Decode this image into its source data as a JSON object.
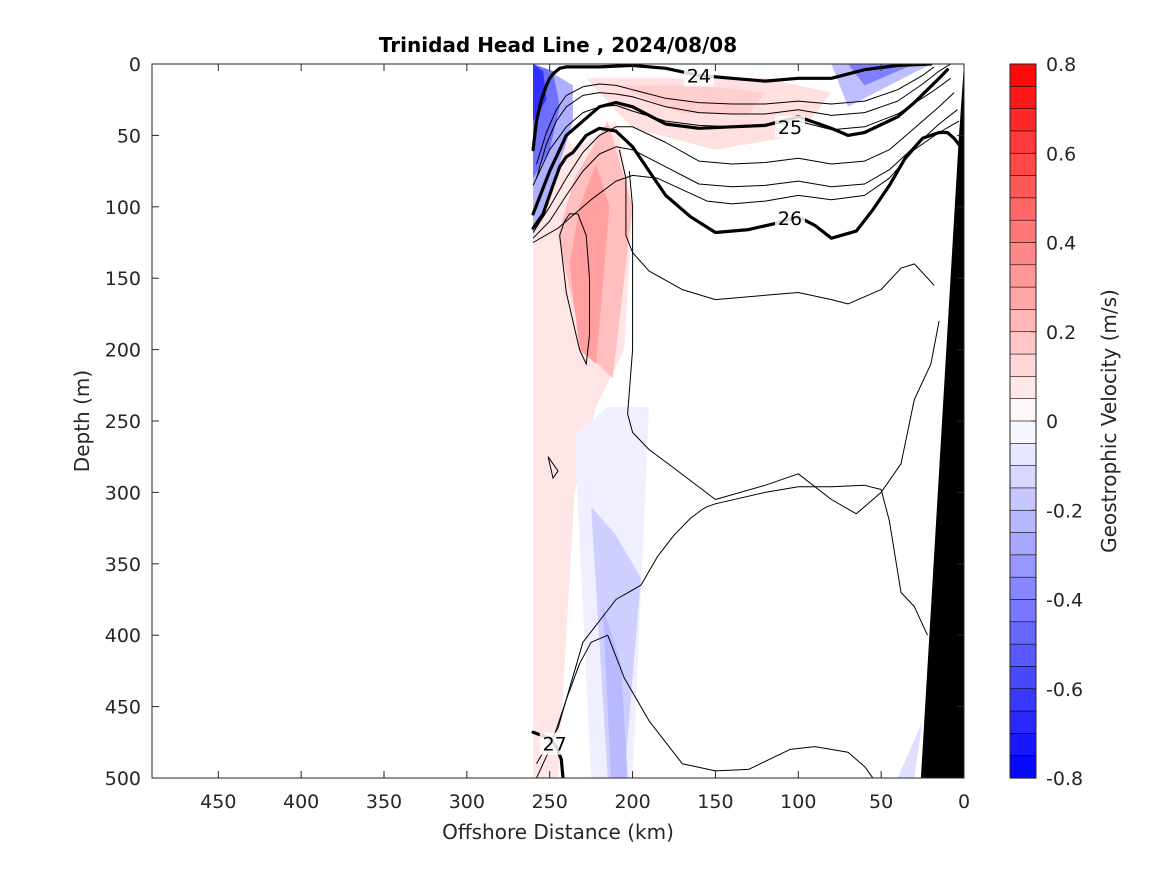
{
  "chart_data": {
    "type": "contour",
    "title": "Trinidad Head Line , 2024/08/08",
    "xlabel": "Offshore Distance (km)",
    "ylabel": "Depth (m)",
    "xlim": [
      490,
      0
    ],
    "ylim": [
      0,
      500
    ],
    "x_reversed": true,
    "y_reversed": true,
    "xticks": [
      450,
      400,
      350,
      300,
      250,
      200,
      150,
      100,
      50,
      0
    ],
    "yticks": [
      0,
      50,
      100,
      150,
      200,
      250,
      300,
      350,
      400,
      450,
      500
    ],
    "colorbar": {
      "label": "Geostrophic Velocity (m/s)",
      "range": [
        -0.8,
        0.8
      ],
      "step": 0.05,
      "ticks": [
        0.8,
        0.6,
        0.4,
        0.2,
        0,
        -0.2,
        -0.4,
        -0.6,
        -0.8
      ],
      "colors": {
        "positive": "#ff0000",
        "negative": "#0000ff",
        "zero": "#ffffff"
      }
    },
    "data_extent_km": [
      0,
      260
    ],
    "velocity_patches": [
      {
        "x": [
          260,
          260,
          245,
          235,
          222,
          205,
          200,
          210,
          235,
          250
        ],
        "y": [
          0,
          500,
          500,
          300,
          240,
          200,
          100,
          40,
          60,
          30
        ],
        "v": 0.08
      },
      {
        "x": [
          245,
          230,
          212,
          200,
          215,
          235
        ],
        "y": [
          120,
          200,
          220,
          100,
          40,
          80
        ],
        "v": 0.2
      },
      {
        "x": [
          238,
          232,
          222,
          214,
          222,
          232
        ],
        "y": [
          140,
          200,
          210,
          100,
          70,
          100
        ],
        "v": 0.3
      },
      {
        "x": [
          228,
          190,
          120,
          80,
          100,
          150,
          200
        ],
        "y": [
          10,
          10,
          10,
          20,
          50,
          60,
          45
        ],
        "v": 0.1
      },
      {
        "x": [
          210,
          160,
          120,
          130,
          170
        ],
        "y": [
          15,
          15,
          20,
          35,
          35
        ],
        "v": 0.15
      },
      {
        "x": [
          235,
          225,
          200,
          190,
          215
        ],
        "y": [
          260,
          500,
          500,
          240,
          240
        ],
        "v": -0.05
      },
      {
        "x": [
          225,
          215,
          205,
          195,
          210
        ],
        "y": [
          310,
          500,
          500,
          360,
          330
        ],
        "v": -0.15
      },
      {
        "x": [
          218,
          213,
          203,
          207
        ],
        "y": [
          380,
          500,
          500,
          420
        ],
        "v": -0.22
      },
      {
        "x": [
          260,
          260,
          252,
          244,
          236,
          236,
          250
        ],
        "y": [
          0,
          120,
          100,
          70,
          40,
          15,
          5
        ],
        "v": -0.25
      },
      {
        "x": [
          260,
          260,
          250,
          244,
          248
        ],
        "y": [
          0,
          80,
          60,
          30,
          5
        ],
        "v": -0.45
      },
      {
        "x": [
          260,
          260,
          252,
          254
        ],
        "y": [
          0,
          40,
          25,
          5
        ],
        "v": -0.65
      },
      {
        "x": [
          80,
          20,
          70
        ],
        "y": [
          0,
          0,
          30
        ],
        "v": -0.2
      },
      {
        "x": [
          70,
          30,
          60
        ],
        "y": [
          0,
          0,
          15
        ],
        "v": -0.4
      },
      {
        "x": [
          40,
          30,
          25
        ],
        "y": [
          500,
          500,
          460
        ],
        "v": -0.1
      }
    ],
    "bathymetry": {
      "x": [
        0,
        0,
        26,
        3
      ],
      "y": [
        0,
        500,
        500,
        50
      ]
    },
    "isopycnals_major": [
      {
        "level": 24,
        "label": "24",
        "label_at": [
          160,
          8
        ],
        "x": [
          260,
          258,
          255,
          252,
          250,
          248,
          246,
          244,
          240,
          230,
          220,
          200,
          180,
          160,
          140,
          120,
          100,
          80,
          60,
          40,
          20
        ],
        "y": [
          60,
          40,
          25,
          15,
          10,
          7,
          5,
          3,
          2,
          2,
          2,
          1,
          3,
          8,
          10,
          12,
          10,
          10,
          4,
          1,
          0
        ]
      },
      {
        "level": 25,
        "label": "25",
        "label_at": [
          105,
          44
        ],
        "x": [
          260,
          255,
          250,
          244,
          240,
          230,
          220,
          210,
          200,
          180,
          160,
          140,
          120,
          110,
          100,
          80,
          70,
          60,
          40,
          30,
          22,
          15,
          10
        ],
        "y": [
          105,
          90,
          75,
          60,
          50,
          40,
          30,
          27,
          30,
          42,
          45,
          44,
          43,
          40,
          37,
          45,
          50,
          48,
          37,
          27,
          18,
          10,
          4
        ]
      },
      {
        "level": 26,
        "label": "26",
        "label_at": [
          105,
          108
        ],
        "x": [
          260,
          254,
          248,
          244,
          240,
          236,
          232,
          228,
          220,
          210,
          200,
          190,
          180,
          165,
          150,
          130,
          115,
          100,
          90,
          80,
          65,
          55,
          45,
          35,
          25,
          15,
          10,
          6,
          2
        ],
        "y": [
          115,
          105,
          85,
          72,
          65,
          62,
          56,
          50,
          45,
          47,
          58,
          75,
          92,
          107,
          118,
          116,
          112,
          107,
          113,
          122,
          117,
          102,
          85,
          65,
          52,
          48,
          48,
          52,
          58
        ]
      },
      {
        "level": 27,
        "label": "27",
        "label_at": [
          247,
          476
        ],
        "x": [
          260,
          255,
          250,
          246,
          243,
          242
        ],
        "y": [
          468,
          470,
          472,
          478,
          487,
          500
        ]
      }
    ],
    "isopycnals_minor": [
      {
        "x": [
          258,
          252,
          246,
          240,
          230,
          220,
          210,
          200,
          180,
          160,
          140,
          120,
          100,
          80,
          60,
          40,
          25,
          18
        ],
        "y": [
          70,
          48,
          32,
          22,
          16,
          14,
          15,
          18,
          24,
          27,
          28,
          28,
          26,
          28,
          26,
          18,
          8,
          2
        ]
      },
      {
        "x": [
          258,
          252,
          246,
          240,
          230,
          220,
          210,
          200,
          180,
          160,
          140,
          120,
          100,
          80,
          60,
          40,
          25,
          15,
          8
        ],
        "y": [
          80,
          56,
          40,
          30,
          22,
          20,
          21,
          23,
          30,
          34,
          35,
          35,
          32,
          36,
          34,
          26,
          14,
          5,
          0
        ]
      },
      {
        "x": [
          260,
          250,
          240,
          230,
          220,
          210,
          200,
          180,
          160,
          140,
          120,
          100,
          80,
          60,
          40,
          20,
          8
        ],
        "y": [
          85,
          60,
          44,
          34,
          30,
          29,
          33,
          40,
          43,
          44,
          43,
          40,
          46,
          44,
          35,
          20,
          10
        ]
      },
      {
        "x": [
          260,
          250,
          240,
          230,
          220,
          210,
          200,
          180,
          160,
          140,
          120,
          100,
          80,
          60,
          45,
          30,
          15,
          6
        ],
        "y": [
          118,
          100,
          80,
          62,
          50,
          44,
          44,
          55,
          68,
          70,
          69,
          66,
          70,
          68,
          60,
          45,
          30,
          20
        ]
      },
      {
        "x": [
          260,
          250,
          240,
          230,
          220,
          210,
          200,
          180,
          160,
          140,
          120,
          100,
          80,
          60,
          45,
          30,
          15,
          4
        ],
        "y": [
          122,
          110,
          92,
          75,
          63,
          58,
          60,
          72,
          84,
          86,
          85,
          82,
          86,
          84,
          74,
          58,
          42,
          32
        ]
      },
      {
        "x": [
          260,
          245,
          235,
          225,
          210,
          200,
          185,
          170,
          155,
          140,
          120,
          100,
          80,
          60,
          45,
          30,
          15,
          3
        ],
        "y": [
          125,
          115,
          105,
          95,
          82,
          78,
          80,
          88,
          96,
          98,
          96,
          92,
          95,
          92,
          80,
          60,
          48,
          40
        ]
      },
      {
        "x": [
          208,
          204,
          204,
          200,
          190,
          170,
          150,
          120,
          100,
          80,
          70,
          50,
          38,
          30,
          18
        ],
        "y": [
          60,
          80,
          120,
          132,
          145,
          158,
          165,
          162,
          160,
          165,
          168,
          158,
          143,
          140,
          155
        ]
      },
      {
        "x": [
          202,
          200,
          200,
          203,
          200,
          190,
          175,
          150,
          120,
          100,
          80,
          65,
          50,
          38,
          30,
          20,
          15
        ],
        "y": [
          75,
          100,
          200,
          245,
          258,
          270,
          283,
          305,
          295,
          287,
          305,
          315,
          300,
          280,
          235,
          210,
          180
        ]
      },
      {
        "x": [
          258,
          252,
          245,
          230,
          210,
          195,
          185,
          175,
          165,
          158,
          155,
          150,
          120,
          100,
          80,
          60,
          50,
          45,
          38,
          30,
          22
        ],
        "y": [
          490,
          478,
          465,
          405,
          375,
          365,
          345,
          330,
          318,
          312,
          310,
          308,
          300,
          296,
          296,
          295,
          298,
          320,
          370,
          380,
          400
        ]
      },
      {
        "x": [
          258,
          250,
          240,
          232,
          225,
          215,
          205,
          190,
          170,
          150,
          130,
          105,
          90,
          70,
          60,
          55
        ],
        "y": [
          500,
          480,
          445,
          420,
          405,
          400,
          430,
          460,
          490,
          495,
          494,
          480,
          478,
          482,
          492,
          500
        ]
      }
    ],
    "small_closed_contours": [
      {
        "x": [
          251,
          248,
          245,
          248
        ],
        "y": [
          275,
          280,
          285,
          290
        ]
      },
      {
        "x": [
          244,
          240,
          232,
          228,
          226,
          226,
          228,
          233,
          238,
          241
        ],
        "y": [
          120,
          160,
          200,
          210,
          190,
          150,
          120,
          105,
          105,
          110
        ]
      }
    ]
  }
}
